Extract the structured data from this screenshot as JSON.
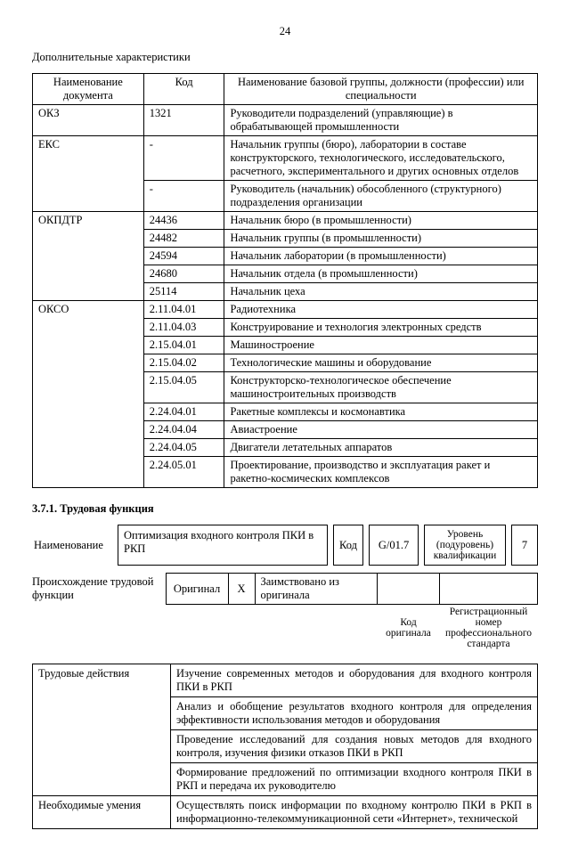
{
  "page_number": "24",
  "heading1": "Дополнительные характеристики",
  "table1": {
    "headers": [
      "Наименование документа",
      "Код",
      "Наименование базовой группы, должности (профессии) или специальности"
    ],
    "groups": [
      {
        "doc": "ОКЗ",
        "rows": [
          {
            "code": "1321",
            "name": "Руководители подразделений (управляющие) в обрабатывающей промышленности"
          }
        ]
      },
      {
        "doc": "ЕКС",
        "rows": [
          {
            "code": "-",
            "name": "Начальник группы (бюро), лаборатории в составе конструкторского, технологического, исследовательского, расчетного, экспериментального и других основных отделов"
          },
          {
            "code": "-",
            "name": "Руководитель (начальник) обособленного (структурного) подразделения организации"
          }
        ]
      },
      {
        "doc": "ОКПДТР",
        "rows": [
          {
            "code": "24436",
            "name": "Начальник бюро (в промышленности)"
          },
          {
            "code": "24482",
            "name": "Начальник группы (в промышленности)"
          },
          {
            "code": "24594",
            "name": "Начальник лаборатории (в промышленности)"
          },
          {
            "code": "24680",
            "name": "Начальник отдела (в промышленности)"
          },
          {
            "code": "25114",
            "name": "Начальник цеха"
          }
        ]
      },
      {
        "doc": "ОКСО",
        "rows": [
          {
            "code": "2.11.04.01",
            "name": "Радиотехника"
          },
          {
            "code": "2.11.04.03",
            "name": "Конструирование и технология электронных средств"
          },
          {
            "code": "2.15.04.01",
            "name": "Машиностроение"
          },
          {
            "code": "2.15.04.02",
            "name": "Технологические машины и оборудование"
          },
          {
            "code": "2.15.04.05",
            "name": "Конструкторско-технологическое обеспечение машиностроительных производств"
          },
          {
            "code": "2.24.04.01",
            "name": "Ракетные комплексы и космонавтика"
          },
          {
            "code": "2.24.04.04",
            "name": "Авиастроение"
          },
          {
            "code": "2.24.04.05",
            "name": "Двигатели летательных аппаратов"
          },
          {
            "code": "2.24.05.01",
            "name": "Проектирование, производство и эксплуатация ракет и ракетно-космических комплексов"
          }
        ]
      }
    ]
  },
  "section_title": "3.7.1. Трудовая функция",
  "func_block": {
    "name_label": "Наименование",
    "name_value": "Оптимизация входного контроля ПКИ в РКП",
    "code_label": "Код",
    "code_value": "G/01.7",
    "level_label": "Уровень (подуровень) квалификации",
    "level_value": "7"
  },
  "origin_block": {
    "label": "Происхождение трудовой функции",
    "original": "Оригинал",
    "x": "X",
    "borrowed": "Заимствовано из оригинала",
    "code_orig": "Код оригинала",
    "reg_num": "Регистрационный номер профессионального стандарта"
  },
  "table3": {
    "rows": [
      {
        "left": "Трудовые действия",
        "rights": [
          "Изучение современных методов и оборудования для входного контроля ПКИ в РКП",
          "Анализ и обобщение результатов входного контроля для определения эффективности использования методов и оборудования",
          "Проведение исследований для создания новых методов для входного контроля, изучения физики отказов ПКИ в РКП",
          "Формирование предложений по оптимизации входного контроля ПКИ в РКП и передача их руководителю"
        ]
      },
      {
        "left": "Необходимые умения",
        "rights": [
          "Осуществлять поиск информации по входному контролю ПКИ в РКП в информационно-телекоммуникационной сети «Интернет», технической"
        ]
      }
    ]
  }
}
